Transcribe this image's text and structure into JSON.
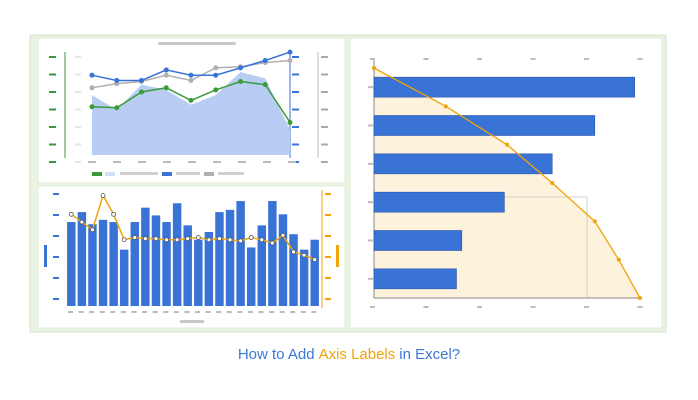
{
  "caption": {
    "part1": "How to Add",
    "part2": "Axis Labels",
    "part3": "in Excel?",
    "color1": "#3c78d8",
    "color2": "#f0a30a"
  },
  "chart_data": [
    {
      "type": "area-line",
      "ylim": [
        0,
        100
      ],
      "series": [
        {
          "kind": "area",
          "color": "#b7cdf3",
          "values": [
            57,
            43,
            67,
            62,
            48,
            57,
            79,
            73,
            24
          ]
        },
        {
          "kind": "line",
          "color": "#b0b0b0",
          "values": [
            64,
            68,
            70,
            76,
            71,
            83,
            84,
            88,
            90
          ]
        },
        {
          "kind": "line",
          "color": "#3a73d6",
          "values": [
            76,
            71,
            71,
            81,
            76,
            76,
            83,
            90,
            98
          ]
        },
        {
          "kind": "line",
          "color": "#3a9a3a",
          "values": [
            46,
            45,
            60,
            64,
            52,
            62,
            70,
            67,
            31
          ]
        }
      ]
    },
    {
      "type": "bar-line",
      "ylim": [
        0,
        105
      ],
      "series": [
        {
          "kind": "bar",
          "color": "#3a73d6",
          "values": [
            76,
            85,
            74,
            78,
            76,
            51,
            76,
            89,
            82,
            76,
            93,
            73,
            60,
            67,
            85,
            87,
            95,
            53,
            73,
            95,
            83,
            65,
            51,
            60
          ]
        },
        {
          "kind": "line",
          "color": "#f0a30a",
          "values": [
            83,
            76,
            69,
            100,
            83,
            60,
            62,
            61,
            61,
            60,
            60,
            61,
            62,
            60,
            61,
            60,
            59,
            62,
            60,
            57,
            64,
            49,
            46,
            42
          ]
        }
      ]
    },
    {
      "type": "hbar-line",
      "xlim": [
        0,
        100
      ],
      "series": [
        {
          "kind": "bar",
          "color": "#3a73d6",
          "values": [
            98,
            83,
            67,
            49,
            33,
            31
          ]
        },
        {
          "kind": "line",
          "color": "#f0a30a",
          "area": "#fdf3dd",
          "values": [
            0,
            27,
            50,
            67,
            83,
            92,
            100
          ]
        }
      ]
    }
  ]
}
